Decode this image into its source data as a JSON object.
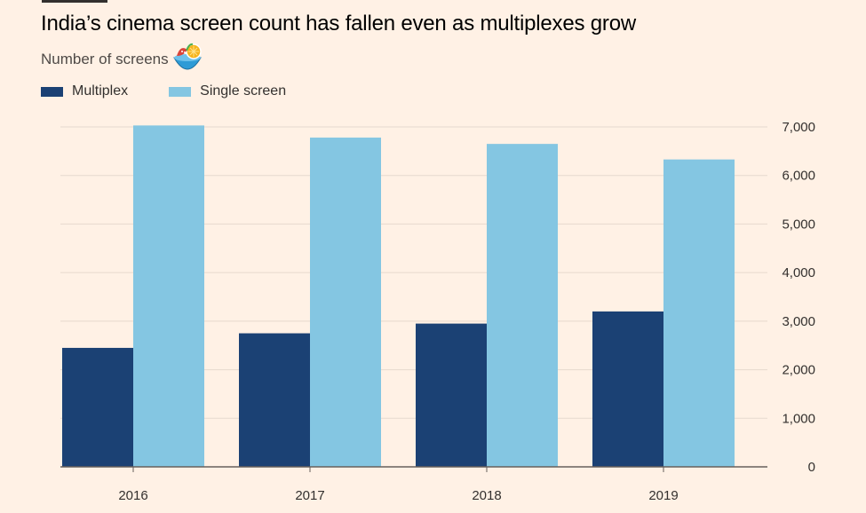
{
  "header": {
    "title": "India’s cinema screen count has fallen even as multiplexes grow",
    "subtitle": "Number of screens"
  },
  "colors": {
    "background": "#fff1e5",
    "multiplex": "#1b4174",
    "single_screen": "#84c6e2",
    "grid": "#e6d9ce",
    "axis": "#66605c"
  },
  "icons": {
    "sticker": "fruit-bowl-icon"
  },
  "chart_data": {
    "type": "bar",
    "title": "India’s cinema screen count has fallen even as multiplexes grow",
    "subtitle": "Number of screens",
    "xlabel": "",
    "ylabel": "",
    "categories": [
      "2016",
      "2017",
      "2018",
      "2019"
    ],
    "series": [
      {
        "name": "Multiplex",
        "values": [
          2450,
          2750,
          2950,
          3200
        ]
      },
      {
        "name": "Single screen",
        "values": [
          7030,
          6780,
          6650,
          6330
        ]
      }
    ],
    "ylim": [
      0,
      7000
    ],
    "yticks": [
      0,
      1000,
      2000,
      3000,
      4000,
      5000,
      6000,
      7000
    ],
    "ytick_labels": [
      "0",
      "1,000",
      "2,000",
      "3,000",
      "4,000",
      "5,000",
      "6,000",
      "7,000"
    ],
    "y_axis_side": "right",
    "grid": true,
    "legend_position": "top-left"
  }
}
